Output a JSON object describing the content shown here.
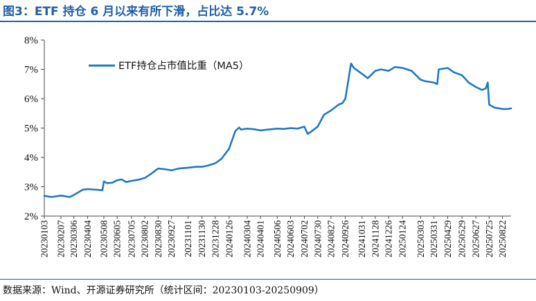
{
  "header": {
    "title": "图3：ETF 持仓 6 月以来有所下滑，占比达 5.7%"
  },
  "footer": {
    "source": "数据来源：Wind、开源证券研究所（统计区间：20230103-20250909）"
  },
  "colors": {
    "series": "#1f77c4",
    "rule": "#1f5fa8"
  },
  "chart_data": {
    "type": "line",
    "ylim": [
      2,
      8
    ],
    "yticks": [
      2,
      3,
      4,
      5,
      6,
      7,
      8
    ],
    "ytick_labels": [
      "2%",
      "3%",
      "4%",
      "5%",
      "6%",
      "7%",
      "8%"
    ],
    "x_range": [
      "2023-01-03",
      "2025-09-09"
    ],
    "xtick_labels": [
      "20230103",
      "20230207",
      "20230306",
      "20230404",
      "20230508",
      "20230605",
      "20230705",
      "20230802",
      "20230830",
      "20230927",
      "20231101",
      "20231130",
      "20231228",
      "20240126",
      "20240304",
      "20240401",
      "20240506",
      "20240603",
      "20240702",
      "20240730",
      "20240827",
      "20240926",
      "20241031",
      "20241128",
      "20241226",
      "20250124",
      "20250303",
      "20250331",
      "20250429",
      "20250529",
      "20250627",
      "20250725",
      "20250822"
    ],
    "legend_position": "top-left",
    "series": [
      {
        "name": "ETF持仓占市值比重（MA5）",
        "x": [
          "2023-01-03",
          "2023-01-18",
          "2023-02-07",
          "2023-02-25",
          "2023-03-06",
          "2023-03-25",
          "2023-04-04",
          "2023-04-22",
          "2023-05-05",
          "2023-05-08",
          "2023-05-15",
          "2023-05-26",
          "2023-06-05",
          "2023-06-14",
          "2023-06-24",
          "2023-07-05",
          "2023-07-20",
          "2023-08-02",
          "2023-08-16",
          "2023-08-30",
          "2023-09-12",
          "2023-09-27",
          "2023-10-12",
          "2023-11-01",
          "2023-11-18",
          "2023-11-30",
          "2023-12-12",
          "2023-12-28",
          "2024-01-10",
          "2024-01-26",
          "2024-02-08",
          "2024-02-16",
          "2024-02-20",
          "2024-03-04",
          "2024-03-18",
          "2024-04-01",
          "2024-04-18",
          "2024-05-06",
          "2024-05-20",
          "2024-06-03",
          "2024-06-18",
          "2024-07-02",
          "2024-07-09",
          "2024-07-18",
          "2024-07-30",
          "2024-08-12",
          "2024-08-27",
          "2024-09-12",
          "2024-09-20",
          "2024-09-26",
          "2024-10-08",
          "2024-10-14",
          "2024-10-31",
          "2024-11-12",
          "2024-11-28",
          "2024-12-10",
          "2024-12-26",
          "2025-01-08",
          "2025-01-24",
          "2025-02-12",
          "2025-03-03",
          "2025-03-12",
          "2025-03-31",
          "2025-04-07",
          "2025-04-10",
          "2025-04-29",
          "2025-05-12",
          "2025-05-29",
          "2025-06-12",
          "2025-06-27",
          "2025-07-10",
          "2025-07-18",
          "2025-07-22",
          "2025-07-25",
          "2025-08-05",
          "2025-08-22",
          "2025-09-01",
          "2025-09-09"
        ],
        "values": [
          2.69,
          2.65,
          2.7,
          2.65,
          2.72,
          2.9,
          2.92,
          2.9,
          2.88,
          3.18,
          3.12,
          3.14,
          3.22,
          3.25,
          3.16,
          3.2,
          3.24,
          3.3,
          3.45,
          3.62,
          3.6,
          3.56,
          3.62,
          3.65,
          3.68,
          3.68,
          3.72,
          3.8,
          3.95,
          4.3,
          4.9,
          5.02,
          4.95,
          4.98,
          4.96,
          4.92,
          4.95,
          4.98,
          4.97,
          5.0,
          4.98,
          5.05,
          4.8,
          4.9,
          5.05,
          5.45,
          5.6,
          5.8,
          5.85,
          6.0,
          7.2,
          7.05,
          6.85,
          6.7,
          6.95,
          7.0,
          6.95,
          7.08,
          7.05,
          6.95,
          6.65,
          6.6,
          6.55,
          6.5,
          7.0,
          7.05,
          6.9,
          6.8,
          6.55,
          6.4,
          6.3,
          6.35,
          6.55,
          5.8,
          5.7,
          5.65,
          5.65,
          5.67
        ]
      }
    ]
  }
}
